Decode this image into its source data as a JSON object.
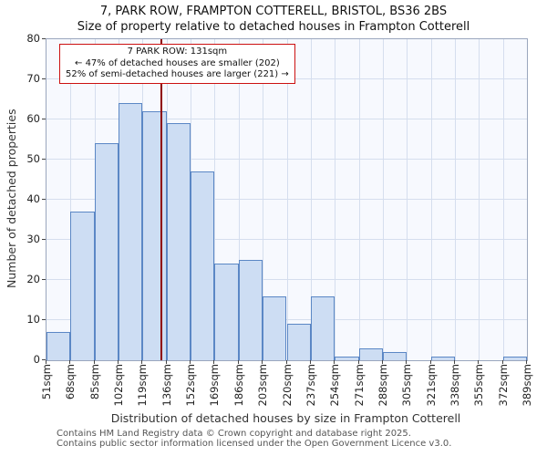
{
  "title": "7, PARK ROW, FRAMPTON COTTERELL, BRISTOL, BS36 2BS",
  "subtitle": "Size of property relative to detached houses in Frampton Cotterell",
  "chart_data": {
    "type": "bar",
    "title": "7, PARK ROW, FRAMPTON COTTERELL, BRISTOL, BS36 2BS",
    "subtitle": "Size of property relative to detached houses in Frampton Cotterell",
    "categories": [
      "51sqm",
      "68sqm",
      "85sqm",
      "102sqm",
      "119sqm",
      "136sqm",
      "152sqm",
      "169sqm",
      "186sqm",
      "203sqm",
      "220sqm",
      "237sqm",
      "254sqm",
      "271sqm",
      "288sqm",
      "305sqm",
      "321sqm",
      "338sqm",
      "355sqm",
      "372sqm",
      "389sqm"
    ],
    "values": [
      7,
      37,
      54,
      64,
      62,
      59,
      47,
      24,
      25,
      16,
      9,
      16,
      1,
      3,
      2,
      0,
      1,
      0,
      0,
      1
    ],
    "xlabel": "Distribution of detached houses by size in Frampton Cotterell",
    "ylabel": "Number of detached properties",
    "ylim": [
      0,
      80
    ],
    "ytick_step": 10,
    "grid": true,
    "marker": {
      "sqm": 131,
      "axis_min": 51,
      "axis_max": 389
    },
    "bar_fill": "#cdddf3",
    "bar_border": "#5b87c5",
    "marker_color": "#8f0000",
    "annotation_border": "#cc1111"
  },
  "annotation": {
    "line1": "7 PARK ROW: 131sqm",
    "line2": "← 47% of detached houses are smaller (202)",
    "line3": "52% of semi-detached houses are larger (221) →"
  },
  "footer": {
    "line1": "Contains HM Land Registry data © Crown copyright and database right 2025.",
    "line2": "Contains public sector information licensed under the Open Government Licence v3.0."
  }
}
